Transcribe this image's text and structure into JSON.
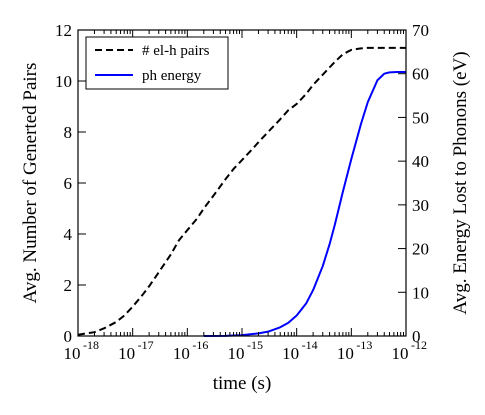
{
  "chart_data": {
    "type": "line",
    "title": "",
    "xlabel": "time (s)",
    "ylabel_left": "Avg. Number of Generted Pairs",
    "ylabel_right": "Avg. Energy Lost to Phonons (eV)",
    "x_scale": "log",
    "xlim": [
      1e-18,
      1e-12
    ],
    "x_ticks": [
      {
        "base": "10",
        "exp": "-18"
      },
      {
        "base": "10",
        "exp": "-17"
      },
      {
        "base": "10",
        "exp": "-16"
      },
      {
        "base": "10",
        "exp": "-15"
      },
      {
        "base": "10",
        "exp": "-14"
      },
      {
        "base": "10",
        "exp": "-13"
      },
      {
        "base": "10",
        "exp": "-12"
      }
    ],
    "ylim_left": [
      0,
      12
    ],
    "y_ticks_left": [
      "0",
      "2",
      "4",
      "6",
      "8",
      "10",
      "12"
    ],
    "ylim_right": [
      0,
      70
    ],
    "y_ticks_right": [
      "0",
      "10",
      "20",
      "30",
      "40",
      "50",
      "60",
      "70"
    ],
    "grid": false,
    "legend_position": "top-left",
    "series": [
      {
        "name": "# el-h pairs",
        "axis": "left",
        "color": "#000000",
        "style": "dashed",
        "points": [
          [
            1e-18,
            0.05
          ],
          [
            2e-18,
            0.15
          ],
          [
            3e-18,
            0.3
          ],
          [
            5e-18,
            0.55
          ],
          [
            7e-18,
            0.8
          ],
          [
            1e-17,
            1.15
          ],
          [
            1.5e-17,
            1.6
          ],
          [
            2e-17,
            1.95
          ],
          [
            3e-17,
            2.5
          ],
          [
            5e-17,
            3.2
          ],
          [
            7e-17,
            3.75
          ],
          [
            1e-16,
            4.15
          ],
          [
            1.5e-16,
            4.6
          ],
          [
            2e-16,
            5.0
          ],
          [
            3e-16,
            5.5
          ],
          [
            5e-16,
            6.15
          ],
          [
            7e-16,
            6.55
          ],
          [
            1e-15,
            6.9
          ],
          [
            1.5e-15,
            7.3
          ],
          [
            2e-15,
            7.6
          ],
          [
            3e-15,
            8.0
          ],
          [
            5e-15,
            8.5
          ],
          [
            7e-15,
            8.85
          ],
          [
            1e-14,
            9.1
          ],
          [
            1.5e-14,
            9.5
          ],
          [
            2e-14,
            9.85
          ],
          [
            3e-14,
            10.25
          ],
          [
            5e-14,
            10.75
          ],
          [
            7e-14,
            11.05
          ],
          [
            1e-13,
            11.22
          ],
          [
            1.5e-13,
            11.28
          ],
          [
            2e-13,
            11.3
          ],
          [
            5e-13,
            11.3
          ],
          [
            1e-12,
            11.3
          ]
        ]
      },
      {
        "name": "ph energy",
        "axis": "right",
        "color": "#0000ff",
        "style": "solid",
        "points": [
          [
            2e-16,
            0.0
          ],
          [
            5e-16,
            0.02
          ],
          [
            1e-15,
            0.2
          ],
          [
            2e-15,
            0.6
          ],
          [
            3e-15,
            1.0
          ],
          [
            5e-15,
            2.0
          ],
          [
            7e-15,
            3.0
          ],
          [
            1e-14,
            4.7
          ],
          [
            1.5e-14,
            7.5
          ],
          [
            2e-14,
            10.5
          ],
          [
            3e-14,
            16.0
          ],
          [
            4e-14,
            21.0
          ],
          [
            5e-14,
            25.5
          ],
          [
            7e-14,
            33.0
          ],
          [
            1e-13,
            40.5
          ],
          [
            1.5e-13,
            48.5
          ],
          [
            2e-13,
            53.5
          ],
          [
            3e-13,
            58.5
          ],
          [
            4e-13,
            60.0
          ],
          [
            5e-13,
            60.3
          ],
          [
            7e-13,
            60.4
          ],
          [
            1e-12,
            60.4
          ]
        ]
      }
    ]
  }
}
